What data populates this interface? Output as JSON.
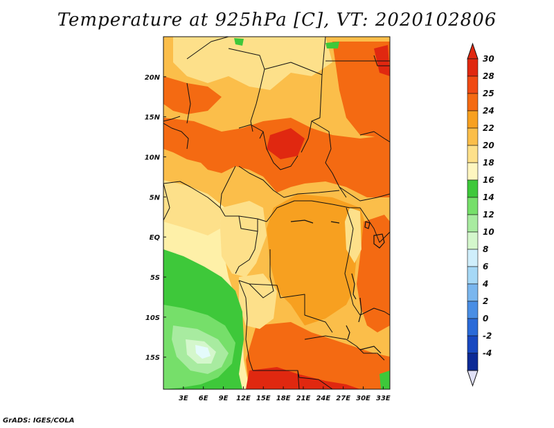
{
  "title": "Temperature at 925hPa [C], VT: 2020102806",
  "credit": "GrADS: IGES/COLA",
  "map": {
    "variable": "Temperature at 925hPa",
    "units": "C",
    "valid_time": "2020102806",
    "region": "Central Africa",
    "lon_range": [
      0,
      34
    ],
    "lat_range": [
      -19,
      25
    ],
    "colors": {
      "ocean": "#fef0a8",
      "hot_deep": "#e02810",
      "hot": "#f46a12",
      "warm_orange": "#f7a020",
      "warm": "#fbbe4a",
      "mild": "#fde08a",
      "green_dark": "#3ec83a",
      "green_mid": "#76df6a",
      "green_light": "#a8eba0",
      "green_pale": "#d4f7cc",
      "cyan_pale": "#e4fbfb"
    }
  },
  "axes": {
    "x_ticks": [
      {
        "value": 3,
        "label": "3E"
      },
      {
        "value": 6,
        "label": "6E"
      },
      {
        "value": 9,
        "label": "9E"
      },
      {
        "value": 12,
        "label": "12E"
      },
      {
        "value": 15,
        "label": "15E"
      },
      {
        "value": 18,
        "label": "18E"
      },
      {
        "value": 21,
        "label": "21E"
      },
      {
        "value": 24,
        "label": "24E"
      },
      {
        "value": 27,
        "label": "27E"
      },
      {
        "value": 30,
        "label": "30E"
      },
      {
        "value": 33,
        "label": "33E"
      }
    ],
    "y_ticks": [
      {
        "value": 20,
        "label": "20N"
      },
      {
        "value": 15,
        "label": "15N"
      },
      {
        "value": 10,
        "label": "10N"
      },
      {
        "value": 5,
        "label": "5N"
      },
      {
        "value": 0,
        "label": "EQ"
      },
      {
        "value": -5,
        "label": "5S"
      },
      {
        "value": -10,
        "label": "10S"
      },
      {
        "value": -15,
        "label": "15S"
      }
    ]
  },
  "colorbar": {
    "levels": [
      {
        "label": "30",
        "color": "#e02810"
      },
      {
        "label": "28",
        "color": "#f04a14"
      },
      {
        "label": "25",
        "color": "#f46a12"
      },
      {
        "label": "24",
        "color": "#f7a020"
      },
      {
        "label": "22",
        "color": "#fbbe4a"
      },
      {
        "label": "20",
        "color": "#fde08a"
      },
      {
        "label": "18",
        "color": "#fef6c0"
      },
      {
        "label": "16",
        "color": "#3ec83a"
      },
      {
        "label": "14",
        "color": "#76df6a"
      },
      {
        "label": "12",
        "color": "#a8eba0"
      },
      {
        "label": "10",
        "color": "#d4f7cc"
      },
      {
        "label": "8",
        "color": "#cfeefb"
      },
      {
        "label": "6",
        "color": "#a6d8f6"
      },
      {
        "label": "4",
        "color": "#7ab6ee"
      },
      {
        "label": "2",
        "color": "#4a8ee4"
      },
      {
        "label": "0",
        "color": "#2a6ad8"
      },
      {
        "label": "-2",
        "color": "#1848c0"
      },
      {
        "label": "-4",
        "color": "#0c2a96"
      }
    ],
    "top_arrow_color": "#e02810",
    "bottom_arrow_color": "#e0e0f6",
    "bottom_segment_color": "#0a1a6e"
  }
}
